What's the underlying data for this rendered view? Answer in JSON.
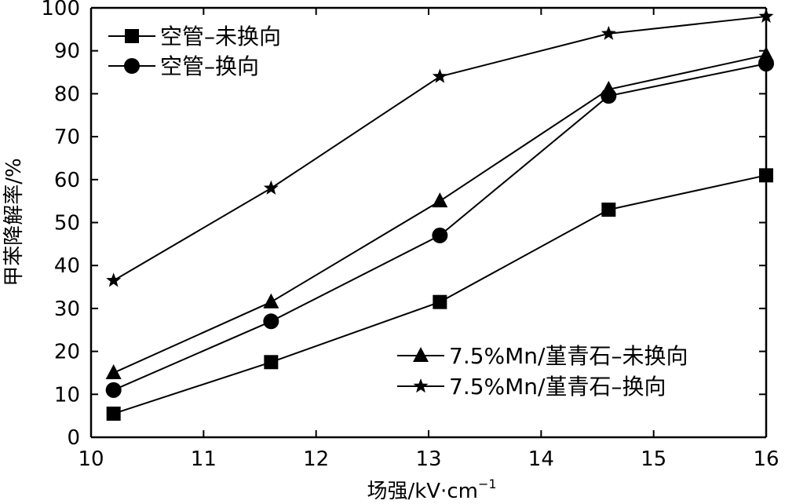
{
  "chart_data": {
    "type": "line",
    "title": "",
    "xlabel": "场强/kV·cm",
    "xlabel_sup": "−1",
    "ylabel": "甲苯降解率/%",
    "xlim": [
      10,
      16
    ],
    "ylim": [
      0,
      100
    ],
    "xticks": [
      "10",
      "11",
      "12",
      "13",
      "14",
      "15",
      "16"
    ],
    "yticks": [
      "0",
      "10",
      "20",
      "30",
      "40",
      "50",
      "60",
      "70",
      "80",
      "90",
      "100"
    ],
    "grid": false,
    "x": [
      10.2,
      11.6,
      13.1,
      14.6,
      16.0
    ],
    "series": [
      {
        "name": "空管–未换向",
        "marker": "square",
        "values": [
          5.5,
          17.5,
          31.5,
          53,
          61
        ]
      },
      {
        "name": "空管–换向",
        "marker": "circle",
        "values": [
          11,
          27,
          47,
          79.5,
          87
        ]
      },
      {
        "name": "7.5%Mn/堇青石–未换向",
        "marker": "triangle",
        "values": [
          15,
          31.5,
          55,
          81,
          89
        ]
      },
      {
        "name": "7.5%Mn/堇青石–换向",
        "marker": "star",
        "values": [
          36.5,
          58,
          84,
          94,
          98
        ]
      }
    ],
    "legend_placement": [
      "top-left",
      "bottom-right"
    ],
    "colors": {
      "line": "#000000",
      "marker": "#000000"
    }
  }
}
